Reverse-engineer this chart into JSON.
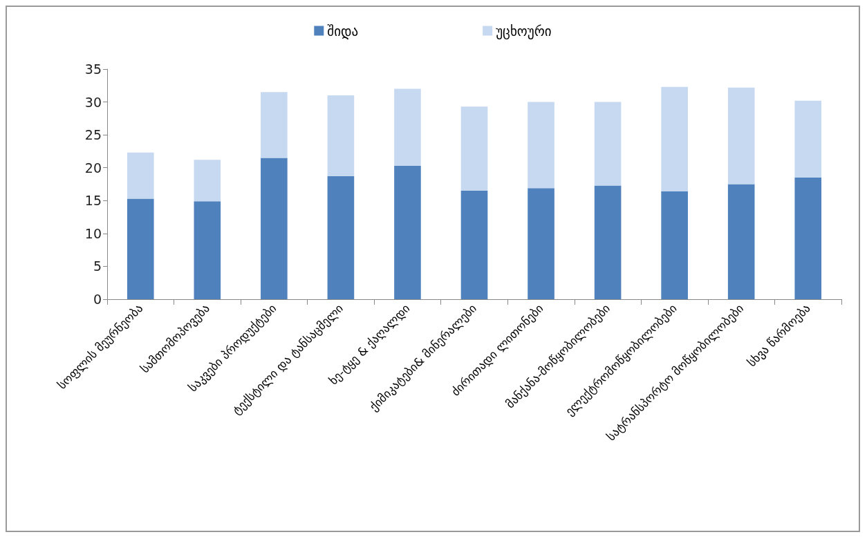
{
  "chart_data": {
    "type": "bar",
    "stacked": true,
    "categories": [
      "სოფლის მეურნეობა",
      "სამთომოპოვება",
      "საკვები პროდუქტები",
      "ტექსტილი და ტანსაცმელი",
      "ხე-ტყე & ქაღალდი",
      "ქიმიკატები& მინერალები",
      "ძირითადი ლითონები",
      "მანქანა-მოწყობილობები",
      "ელექტრომოწყობილობები",
      "სატრანსპორტო მოწყობილობები",
      "სხვა წარმოება"
    ],
    "series": [
      {
        "name": "შიდა",
        "color": "#4f81bd",
        "values": [
          15.3,
          14.9,
          21.5,
          18.7,
          20.3,
          16.5,
          16.9,
          17.3,
          16.4,
          17.5,
          18.5
        ]
      },
      {
        "name": "უცხოური",
        "color": "#c6d9f1",
        "values": [
          7.0,
          6.3,
          10.0,
          12.3,
          11.7,
          12.8,
          13.1,
          12.7,
          15.9,
          14.7,
          11.7
        ]
      }
    ],
    "ylim": [
      0,
      35
    ],
    "yticks": [
      0,
      5,
      10,
      15,
      20,
      25,
      30,
      35
    ],
    "grid": false,
    "legend": "top"
  }
}
